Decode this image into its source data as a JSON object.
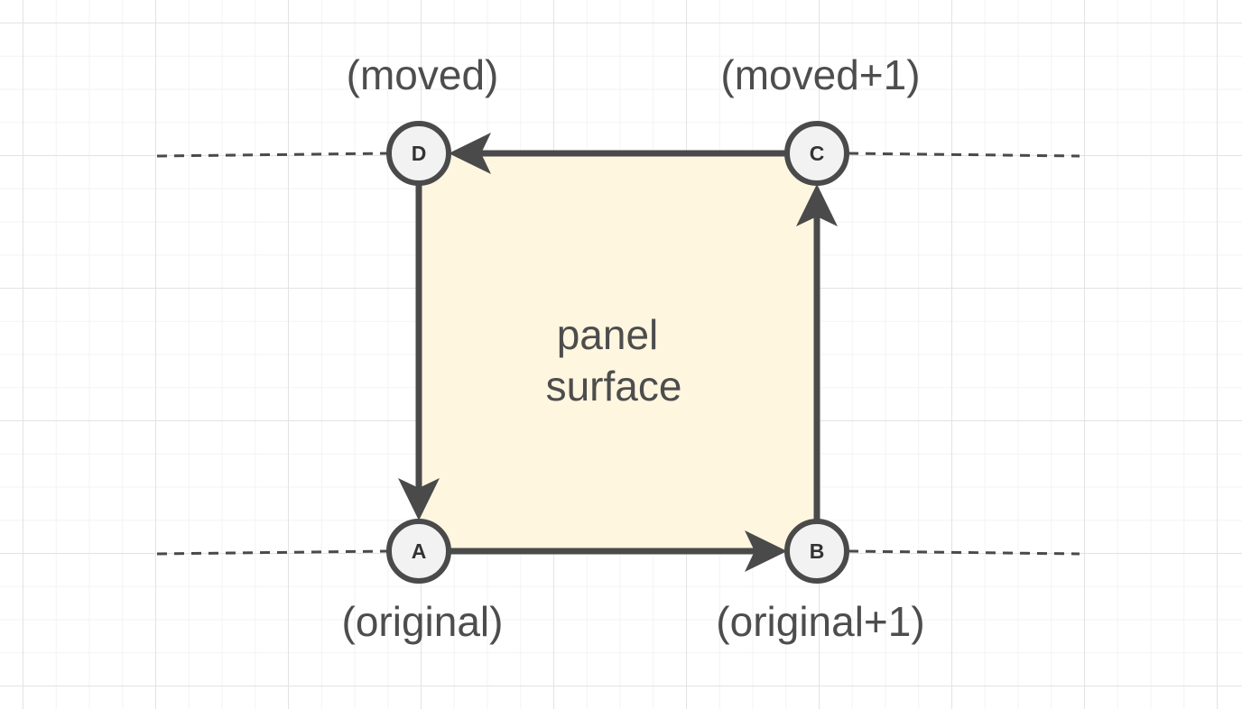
{
  "diagram": {
    "panel": {
      "line1": "panel",
      "line2": "surface"
    },
    "nodes": {
      "a": {
        "letter": "A",
        "caption": "(original)"
      },
      "b": {
        "letter": "B",
        "caption": "(original+1)"
      },
      "c": {
        "letter": "C",
        "caption": "(moved+1)"
      },
      "d": {
        "letter": "D",
        "caption": "(moved)"
      }
    }
  },
  "colors": {
    "panel_fill": "#fff6e0",
    "stroke": "#4a4a4a",
    "node_fill": "#f2f2f2"
  }
}
